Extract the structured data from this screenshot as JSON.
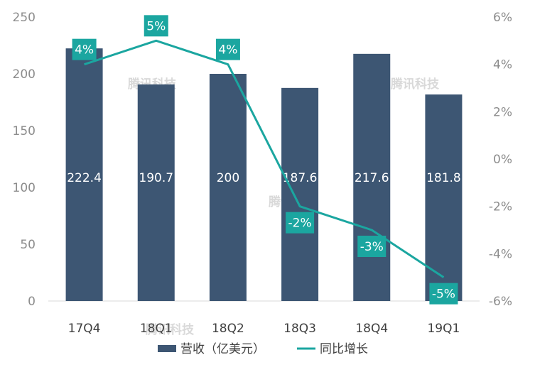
{
  "chart_data": {
    "type": "bar+line",
    "categories": [
      "17Q4",
      "18Q1",
      "18Q2",
      "18Q3",
      "18Q4",
      "19Q1"
    ],
    "series": [
      {
        "name": "营收（亿美元）",
        "type": "bar",
        "axis": "left",
        "values": [
          222.4,
          190.7,
          200,
          187.6,
          217.6,
          181.8
        ],
        "data_labels": [
          "222.4",
          "190.7",
          "200",
          "187.6",
          "217.6",
          "181.8"
        ],
        "color": "#3d5673"
      },
      {
        "name": "同比增长",
        "type": "line",
        "axis": "right",
        "values": [
          4,
          5,
          4,
          -2,
          -3,
          -5
        ],
        "data_labels": [
          "4%",
          "5%",
          "4%",
          "-2%",
          "-3%",
          "-5%"
        ],
        "color": "#1ba6a0"
      }
    ],
    "y_left": {
      "min": 0,
      "max": 250,
      "ticks": [
        "0",
        "50",
        "100",
        "150",
        "200",
        "250"
      ]
    },
    "y_right": {
      "min": -6,
      "max": 6,
      "ticks": [
        "-6%",
        "-4%",
        "-2%",
        "0%",
        "2%",
        "4%",
        "6%"
      ]
    },
    "grid": false,
    "legend_position": "bottom",
    "watermark": "腾讯科技"
  }
}
